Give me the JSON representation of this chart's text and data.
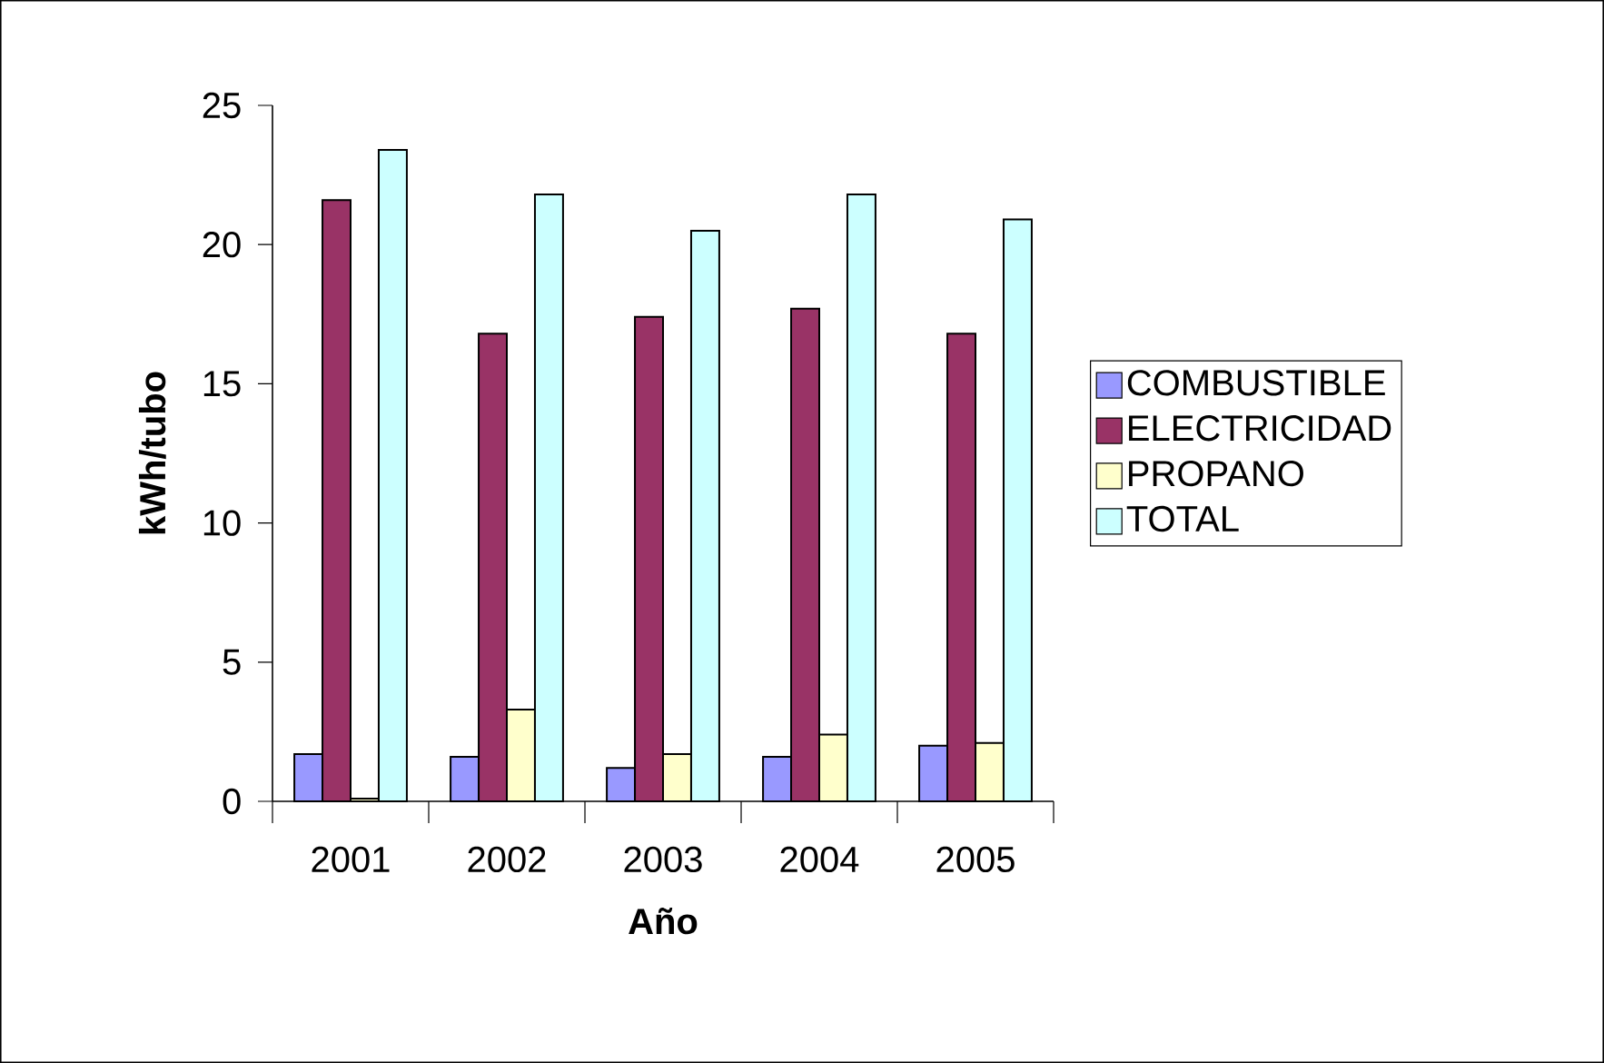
{
  "chart_data": {
    "type": "bar",
    "xlabel": "Año",
    "ylabel": "kWh/tubo",
    "categories": [
      "2001",
      "2002",
      "2003",
      "2004",
      "2005"
    ],
    "series": [
      {
        "name": "COMBUSTIBLE",
        "color": "#9999ff",
        "values": [
          1.7,
          1.6,
          1.2,
          1.6,
          2.0
        ]
      },
      {
        "name": "ELECTRICIDAD",
        "color": "#993366",
        "values": [
          21.6,
          16.8,
          17.4,
          17.7,
          16.8
        ]
      },
      {
        "name": "PROPANO",
        "color": "#ffffcc",
        "values": [
          0.1,
          3.3,
          1.7,
          2.4,
          2.1
        ]
      },
      {
        "name": "TOTAL",
        "color": "#ccffff",
        "values": [
          23.4,
          21.8,
          20.5,
          21.8,
          20.9
        ]
      }
    ],
    "ylim": [
      0,
      25
    ],
    "yticks": [
      0,
      5,
      10,
      15,
      20,
      25
    ],
    "grid": false,
    "legend": "right"
  }
}
